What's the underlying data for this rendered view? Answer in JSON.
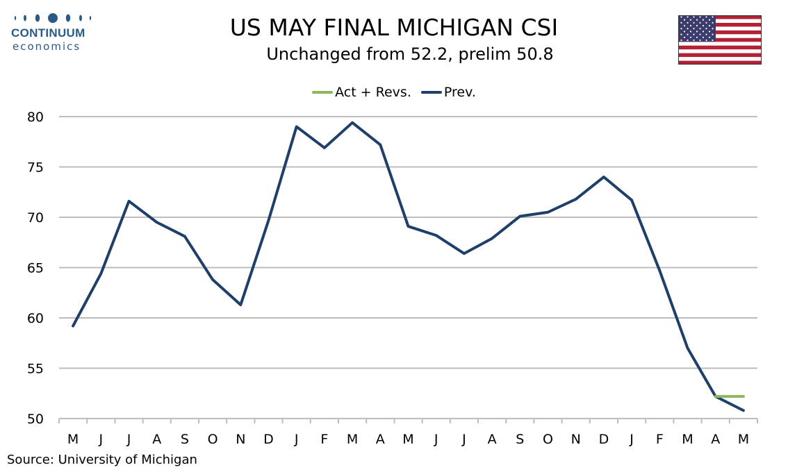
{
  "header": {
    "logo_name": "CONTINUUM",
    "logo_sub": "economics",
    "title": "US MAY FINAL MICHIGAN CSI",
    "subtitle": "Unchanged from 52.2, prelim 50.8"
  },
  "colors": {
    "act_revs": "#8db85a",
    "prev": "#1f3f6b",
    "grid": "#bdbdbd",
    "logo": "#2a5a87"
  },
  "source": "Source: University of Michigan",
  "chart_data": {
    "type": "line",
    "title": "US MAY FINAL MICHIGAN CSI",
    "subtitle": "Unchanged from 52.2, prelim 50.8",
    "categories": [
      "M",
      "J",
      "J",
      "A",
      "S",
      "O",
      "N",
      "D",
      "J",
      "F",
      "M",
      "A",
      "M",
      "J",
      "J",
      "A",
      "S",
      "O",
      "N",
      "D",
      "J",
      "F",
      "M",
      "A",
      "M"
    ],
    "ylim": [
      50,
      80
    ],
    "yticks": [
      50,
      55,
      60,
      65,
      70,
      75,
      80
    ],
    "grid": true,
    "legend_position": "top-center",
    "series": [
      {
        "name": "Act + Revs.",
        "color": "#8db85a",
        "values": [
          null,
          null,
          null,
          null,
          null,
          null,
          null,
          null,
          null,
          null,
          null,
          null,
          null,
          null,
          null,
          null,
          null,
          null,
          null,
          null,
          null,
          null,
          null,
          52.2,
          52.2
        ]
      },
      {
        "name": "Prev.",
        "color": "#1f3f6b",
        "values": [
          59.2,
          64.4,
          71.6,
          69.5,
          68.1,
          63.8,
          61.3,
          69.7,
          79.0,
          76.9,
          79.4,
          77.2,
          69.1,
          68.2,
          66.4,
          67.9,
          70.1,
          70.5,
          71.8,
          74.0,
          71.7,
          64.7,
          57.0,
          52.2,
          50.8
        ]
      }
    ]
  }
}
